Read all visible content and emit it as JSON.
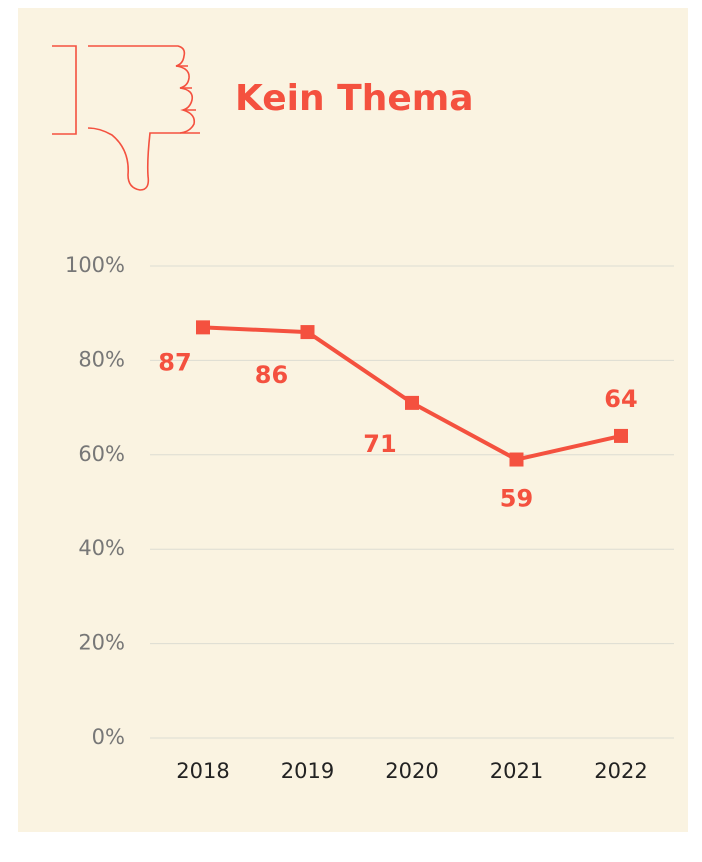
{
  "chart_data": {
    "type": "line",
    "title": "Kein Thema",
    "categories": [
      "2018",
      "2019",
      "2020",
      "2021",
      "2022"
    ],
    "series": [
      {
        "name": "Kein Thema",
        "color": "#f4513f",
        "values": [
          87,
          86,
          71,
          59,
          64
        ]
      }
    ],
    "ylim": [
      0,
      100
    ],
    "yticks": [
      {
        "value": 0,
        "label": "0%"
      },
      {
        "value": 20,
        "label": "20%"
      },
      {
        "value": 40,
        "label": "40%"
      },
      {
        "value": 60,
        "label": "60%"
      },
      {
        "value": 80,
        "label": "80%"
      },
      {
        "value": 100,
        "label": "100%"
      }
    ],
    "grid": true
  }
}
